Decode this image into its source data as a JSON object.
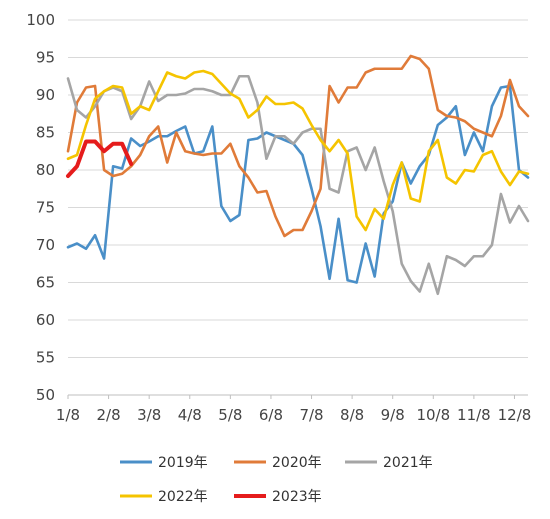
{
  "chart_data": {
    "type": "line",
    "title": "",
    "xlabel": "",
    "ylabel": "",
    "ylim": [
      50,
      100
    ],
    "y_ticks": [
      50,
      55,
      60,
      65,
      70,
      75,
      80,
      85,
      90,
      95,
      100
    ],
    "x_range": [
      1,
      52
    ],
    "grid": "horizontal",
    "legend_position": "bottom",
    "x_tick_labels": [
      {
        "label": "1/8",
        "week": 1
      },
      {
        "label": "2/8",
        "week": 5.5
      },
      {
        "label": "3/8",
        "week": 10
      },
      {
        "label": "4/8",
        "week": 14.5
      },
      {
        "label": "5/8",
        "week": 19
      },
      {
        "label": "6/8",
        "week": 23.5
      },
      {
        "label": "7/8",
        "week": 28
      },
      {
        "label": "8/8",
        "week": 32.5
      },
      {
        "label": "9/8",
        "week": 37
      },
      {
        "label": "10/8",
        "week": 41.5
      },
      {
        "label": "11/8",
        "week": 46
      },
      {
        "label": "12/8",
        "week": 50.5
      }
    ],
    "series": [
      {
        "name": "2019年",
        "color": "#4a8fc8",
        "x": [
          1,
          2,
          3,
          4,
          5,
          6,
          7,
          8,
          9,
          10,
          11,
          12,
          13,
          14,
          15,
          16,
          17,
          18,
          19,
          20,
          21,
          22,
          23,
          24,
          25,
          26,
          27,
          28,
          29,
          30,
          31,
          32,
          33,
          34,
          35,
          36,
          37,
          38,
          39,
          40,
          41,
          42,
          43,
          44,
          45,
          46,
          47,
          48,
          49,
          50,
          51,
          52
        ],
        "values": [
          69.7,
          70.2,
          69.5,
          71.3,
          68.2,
          80.5,
          80.2,
          84.2,
          83.2,
          83.8,
          84.5,
          84.5,
          85.2,
          85.8,
          82.2,
          82.5,
          85.8,
          75.2,
          73.2,
          74.0,
          84.0,
          84.2,
          85.0,
          84.5,
          84.0,
          83.5,
          82.0,
          77.5,
          72.5,
          65.5,
          73.5,
          65.3,
          65.0,
          70.2,
          65.8,
          74.2,
          75.8,
          81.0,
          78.2,
          80.5,
          82.0,
          86.0,
          87.0,
          88.5,
          82.0,
          85.0,
          82.5,
          88.5,
          91.0,
          91.2,
          80.0,
          79.0
        ]
      },
      {
        "name": "2020年",
        "color": "#e07b39",
        "x": [
          1,
          2,
          3,
          4,
          5,
          6,
          7,
          8,
          9,
          10,
          11,
          12,
          13,
          14,
          15,
          16,
          17,
          18,
          19,
          20,
          21,
          22,
          23,
          24,
          25,
          26,
          27,
          28,
          29,
          30,
          31,
          32,
          33,
          34,
          35,
          36,
          37,
          38,
          39,
          40,
          41,
          42,
          43,
          44,
          45,
          46,
          47,
          48,
          49,
          50,
          51,
          52
        ],
        "values": [
          82.5,
          89.0,
          91.0,
          91.2,
          80.0,
          79.2,
          79.5,
          80.5,
          82.0,
          84.5,
          85.8,
          81.0,
          85.0,
          82.5,
          82.2,
          82.0,
          82.2,
          82.2,
          83.5,
          80.5,
          79.0,
          77.0,
          77.2,
          73.8,
          71.2,
          72.0,
          72.0,
          74.5,
          77.5,
          91.2,
          89.0,
          91.0,
          91.0,
          93.0,
          93.5,
          93.5,
          93.5,
          93.5,
          95.2,
          94.8,
          93.5,
          88.0,
          87.2,
          87.0,
          86.5,
          85.5,
          85.0,
          84.5,
          87.2,
          92.0,
          88.5,
          87.2
        ]
      },
      {
        "name": "2021年",
        "color": "#a5a5a5",
        "x": [
          1,
          2,
          3,
          4,
          5,
          6,
          7,
          8,
          9,
          10,
          11,
          12,
          13,
          14,
          15,
          16,
          17,
          18,
          19,
          20,
          21,
          22,
          23,
          24,
          25,
          26,
          27,
          28,
          29,
          30,
          31,
          32,
          33,
          34,
          35,
          36,
          37,
          38,
          39,
          40,
          41,
          42,
          43,
          44,
          45,
          46,
          47,
          48,
          49,
          50,
          51,
          52
        ],
        "values": [
          92.2,
          88.0,
          87.0,
          88.5,
          90.5,
          91.0,
          90.5,
          86.8,
          88.5,
          91.8,
          89.2,
          90.0,
          90.0,
          90.2,
          90.8,
          90.8,
          90.5,
          90.0,
          90.0,
          92.5,
          92.5,
          89.0,
          81.5,
          84.5,
          84.5,
          83.5,
          85.0,
          85.5,
          85.5,
          77.5,
          77.0,
          82.5,
          83.0,
          80.0,
          83.0,
          78.5,
          74.5,
          67.5,
          65.2,
          63.8,
          67.5,
          63.5,
          68.5,
          68.0,
          67.2,
          68.5,
          68.5,
          70.0,
          76.8,
          73.0,
          75.2,
          73.2
        ]
      },
      {
        "name": "2022年",
        "color": "#f5c400",
        "x": [
          1,
          2,
          3,
          4,
          5,
          6,
          7,
          8,
          9,
          10,
          11,
          12,
          13,
          14,
          15,
          16,
          17,
          18,
          19,
          20,
          21,
          22,
          23,
          24,
          25,
          26,
          27,
          28,
          29,
          30,
          31,
          32,
          33,
          34,
          35,
          36,
          37,
          38,
          39,
          40,
          41,
          42,
          43,
          44,
          45,
          46,
          47,
          48,
          49,
          50,
          51,
          52
        ],
        "values": [
          81.5,
          82.0,
          86.0,
          89.5,
          90.5,
          91.2,
          91.0,
          87.5,
          88.5,
          88.0,
          90.5,
          93.0,
          92.5,
          92.2,
          93.0,
          93.2,
          92.8,
          91.5,
          90.2,
          89.5,
          87.0,
          88.0,
          89.8,
          88.8,
          88.8,
          89.0,
          88.2,
          86.0,
          84.0,
          82.5,
          84.0,
          82.2,
          73.8,
          72.0,
          74.8,
          73.5,
          78.0,
          81.0,
          76.2,
          75.8,
          82.5,
          84.0,
          79.0,
          78.2,
          80.0,
          79.8,
          82.0,
          82.5,
          79.8,
          78.0,
          79.8,
          79.5
        ]
      },
      {
        "name": "2023年",
        "color": "#e51c1c",
        "x": [
          1,
          2,
          3,
          4,
          5,
          6,
          7,
          8
        ],
        "values": [
          79.2,
          80.5,
          83.8,
          83.8,
          82.5,
          83.5,
          83.5,
          80.8
        ]
      }
    ]
  }
}
